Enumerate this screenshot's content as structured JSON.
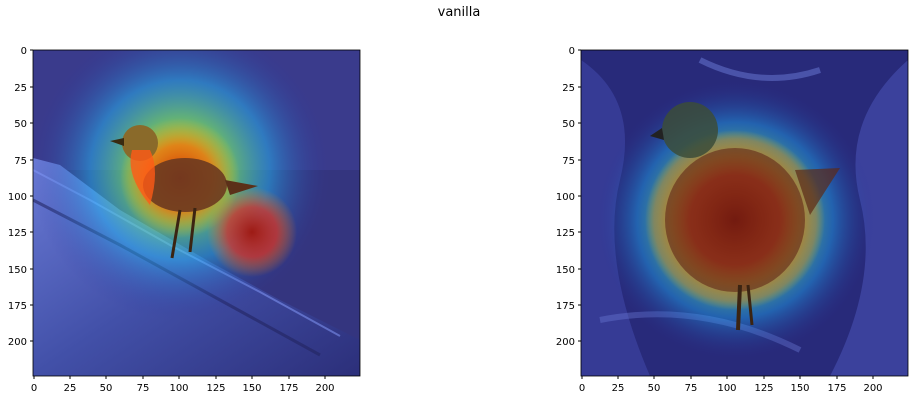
{
  "figure": {
    "title": "vanilla"
  },
  "panels": [
    {
      "image": "Bird perched on a tree branch, heatmap overlay (jet colormap) concentrated on the bird and an area to its lower right",
      "y_ticks": [
        "0",
        "25",
        "50",
        "75",
        "100",
        "125",
        "150",
        "175",
        "200"
      ],
      "x_ticks": [
        "0",
        "25",
        "50",
        "75",
        "100",
        "125",
        "150",
        "175",
        "200"
      ]
    },
    {
      "image": "Close-up of a bird against a dark background, heatmap overlay (jet colormap) concentrated on the bird body",
      "y_ticks": [
        "0",
        "25",
        "50",
        "75",
        "100",
        "125",
        "150",
        "175",
        "200"
      ],
      "x_ticks": [
        "0",
        "25",
        "50",
        "75",
        "100",
        "125",
        "150",
        "175",
        "200"
      ]
    }
  ]
}
